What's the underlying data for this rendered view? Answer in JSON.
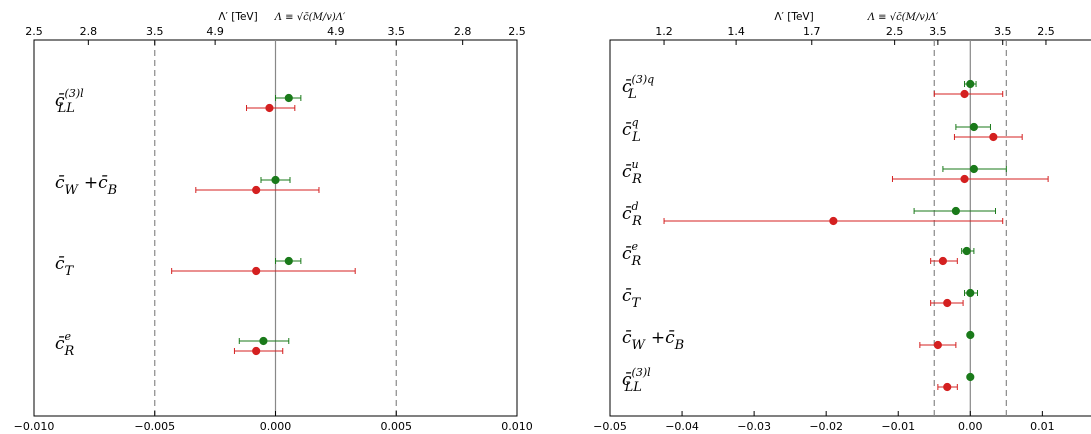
{
  "chart_data": [
    {
      "type": "scatter",
      "title": "",
      "top_axis_label_1": "Λ′ [TeV]",
      "top_axis_label_2": "Λ ≡ √c̄(M/v)Λ′",
      "xlim": [
        -0.01,
        0.01
      ],
      "x_ticks": [
        "−0.010",
        "−0.005",
        "0.000",
        "0.005",
        "0.010"
      ],
      "x_tick_values": [
        -0.01,
        -0.005,
        0.0,
        0.005,
        0.01
      ],
      "top_ticks": [
        {
          "x": -0.01,
          "label": "2.5"
        },
        {
          "x": -0.00775,
          "label": "2.8"
        },
        {
          "x": -0.005,
          "label": "3.5"
        },
        {
          "x": -0.0025,
          "label": "4.9"
        },
        {
          "x": 0.0025,
          "label": "4.9"
        },
        {
          "x": 0.005,
          "label": "3.5"
        },
        {
          "x": 0.00775,
          "label": "2.8"
        },
        {
          "x": 0.01,
          "label": "2.5"
        }
      ],
      "dashed_lines_x": [
        -0.005,
        0.005
      ],
      "zero_line": true,
      "categories": [
        {
          "base": "c̄",
          "sub": "LL",
          "sup": "(3)l"
        },
        {
          "base": "c̄",
          "sub": "W",
          "sup": "",
          "suffix": "+c̄",
          "suffix_sub": "B"
        },
        {
          "base": "c̄",
          "sub": "T",
          "sup": ""
        },
        {
          "base": "c̄",
          "sub": "R",
          "sup": "e"
        }
      ],
      "series": [
        {
          "color": "#1a7a1a",
          "points": [
            {
              "value": 0.00055,
              "low": 0.0,
              "high": 0.00105
            },
            {
              "value": 0.0,
              "low": -0.0006,
              "high": 0.0006
            },
            {
              "value": 0.00055,
              "low": 0.0,
              "high": 0.00105
            },
            {
              "value": -0.0005,
              "low": -0.0015,
              "high": 0.00055
            }
          ]
        },
        {
          "color": "#d42020",
          "points": [
            {
              "value": -0.00025,
              "low": -0.0012,
              "high": 0.0008
            },
            {
              "value": -0.0008,
              "low": -0.0033,
              "high": 0.0018
            },
            {
              "value": -0.0008,
              "low": -0.0043,
              "high": 0.0033
            },
            {
              "value": -0.0008,
              "low": -0.0017,
              "high": 0.0003
            }
          ]
        }
      ]
    },
    {
      "type": "scatter",
      "title": "",
      "top_axis_label_1": "Λ′ [TeV]",
      "top_axis_label_2": "Λ ≡ √c̄(M/v)Λ′",
      "xlim": [
        -0.05,
        0.018
      ],
      "x_ticks": [
        "−0.05",
        "−0.04",
        "−0.03",
        "−0.02",
        "−0.01",
        "0.00",
        "0.01"
      ],
      "x_tick_values": [
        -0.05,
        -0.04,
        -0.03,
        -0.02,
        -0.01,
        0.0,
        0.01
      ],
      "top_ticks": [
        {
          "x": -0.0425,
          "label": "1.2"
        },
        {
          "x": -0.0325,
          "label": "1.4"
        },
        {
          "x": -0.022,
          "label": "1.7"
        },
        {
          "x": -0.0105,
          "label": "2.5"
        },
        {
          "x": -0.0045,
          "label": "3.5"
        },
        {
          "x": 0.0045,
          "label": "3.5"
        },
        {
          "x": 0.0105,
          "label": "2.5"
        }
      ],
      "dashed_lines_x": [
        -0.005,
        0.005
      ],
      "zero_line": true,
      "categories": [
        {
          "base": "c̄",
          "sub": "L",
          "sup": "(3)q"
        },
        {
          "base": "c̄",
          "sub": "L",
          "sup": "q"
        },
        {
          "base": "c̄",
          "sub": "R",
          "sup": "u"
        },
        {
          "base": "c̄",
          "sub": "R",
          "sup": "d"
        },
        {
          "base": "c̄",
          "sub": "R",
          "sup": "e"
        },
        {
          "base": "c̄",
          "sub": "T",
          "sup": ""
        },
        {
          "base": "c̄",
          "sub": "W",
          "sup": "",
          "suffix": "+c̄",
          "suffix_sub": "B"
        },
        {
          "base": "c̄",
          "sub": "LL",
          "sup": "(3)l"
        }
      ],
      "series": [
        {
          "color": "#1a7a1a",
          "points": [
            {
              "value": 0.0,
              "low": -0.0008,
              "high": 0.0008
            },
            {
              "value": 0.0005,
              "low": -0.002,
              "high": 0.0028
            },
            {
              "value": 0.0005,
              "low": -0.0038,
              "high": 0.005
            },
            {
              "value": -0.002,
              "low": -0.0078,
              "high": 0.0035
            },
            {
              "value": -0.0005,
              "low": -0.0012,
              "high": 0.0005
            },
            {
              "value": 0.0,
              "low": -0.0008,
              "high": 0.001
            },
            {
              "value": 0.0,
              "low": 0.0,
              "high": 0.0
            },
            {
              "value": 0.0,
              "low": 0.0,
              "high": 0.0
            }
          ]
        },
        {
          "color": "#d42020",
          "points": [
            {
              "value": -0.0008,
              "low": -0.005,
              "high": 0.0045
            },
            {
              "value": 0.0032,
              "low": -0.0022,
              "high": 0.0072
            },
            {
              "value": -0.0008,
              "low": -0.0108,
              "high": 0.0108
            },
            {
              "value": -0.019,
              "low": -0.0425,
              "high": 0.0045
            },
            {
              "value": -0.0038,
              "low": -0.0055,
              "high": -0.0018
            },
            {
              "value": -0.0032,
              "low": -0.0055,
              "high": -0.001
            },
            {
              "value": -0.0045,
              "low": -0.007,
              "high": -0.002
            },
            {
              "value": -0.0032,
              "low": -0.0045,
              "high": -0.0018
            }
          ]
        }
      ]
    }
  ]
}
